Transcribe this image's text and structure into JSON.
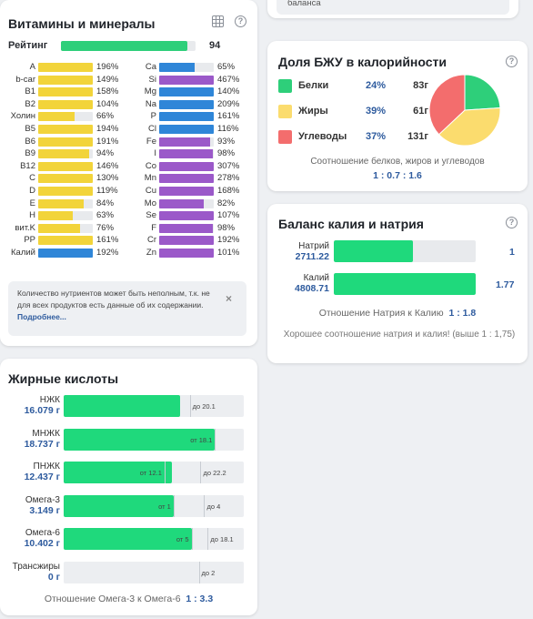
{
  "vitamins": {
    "title": "Витамины и минералы",
    "rating_label": "Рейтинг",
    "rating_value": "94",
    "rating_fraction": 0.94,
    "left": [
      {
        "name": "A",
        "value": "196%",
        "fill": 1.0,
        "color": "#f2d43a"
      },
      {
        "name": "b-car",
        "value": "149%",
        "fill": 1.0,
        "color": "#f2d43a"
      },
      {
        "name": "B1",
        "value": "158%",
        "fill": 1.0,
        "color": "#f2d43a"
      },
      {
        "name": "B2",
        "value": "104%",
        "fill": 1.0,
        "color": "#f2d43a"
      },
      {
        "name": "Холин",
        "value": "66%",
        "fill": 0.66,
        "color": "#f2d43a"
      },
      {
        "name": "B5",
        "value": "194%",
        "fill": 1.0,
        "color": "#f2d43a"
      },
      {
        "name": "B6",
        "value": "191%",
        "fill": 1.0,
        "color": "#f2d43a"
      },
      {
        "name": "B9",
        "value": "94%",
        "fill": 0.94,
        "color": "#f2d43a"
      },
      {
        "name": "B12",
        "value": "146%",
        "fill": 1.0,
        "color": "#f2d43a"
      },
      {
        "name": "C",
        "value": "130%",
        "fill": 1.0,
        "color": "#f2d43a"
      },
      {
        "name": "D",
        "value": "119%",
        "fill": 1.0,
        "color": "#f2d43a"
      },
      {
        "name": "E",
        "value": "84%",
        "fill": 0.84,
        "color": "#f2d43a"
      },
      {
        "name": "H",
        "value": "63%",
        "fill": 0.63,
        "color": "#f2d43a"
      },
      {
        "name": "вит.K",
        "value": "76%",
        "fill": 0.76,
        "color": "#f2d43a"
      },
      {
        "name": "PP",
        "value": "161%",
        "fill": 1.0,
        "color": "#f2d43a"
      },
      {
        "name": "Калий",
        "value": "192%",
        "fill": 1.0,
        "color": "#2f86d8"
      }
    ],
    "right": [
      {
        "name": "Ca",
        "value": "65%",
        "fill": 0.65,
        "color": "#2f86d8"
      },
      {
        "name": "Si",
        "value": "467%",
        "fill": 1.0,
        "color": "#9b59c9"
      },
      {
        "name": "Mg",
        "value": "140%",
        "fill": 1.0,
        "color": "#2f86d8"
      },
      {
        "name": "Na",
        "value": "209%",
        "fill": 1.0,
        "color": "#2f86d8"
      },
      {
        "name": "P",
        "value": "161%",
        "fill": 1.0,
        "color": "#2f86d8"
      },
      {
        "name": "Cl",
        "value": "116%",
        "fill": 1.0,
        "color": "#2f86d8"
      },
      {
        "name": "Fe",
        "value": "93%",
        "fill": 0.93,
        "color": "#9b59c9"
      },
      {
        "name": "I",
        "value": "98%",
        "fill": 0.98,
        "color": "#9b59c9"
      },
      {
        "name": "Co",
        "value": "307%",
        "fill": 1.0,
        "color": "#9b59c9"
      },
      {
        "name": "Mn",
        "value": "278%",
        "fill": 1.0,
        "color": "#9b59c9"
      },
      {
        "name": "Cu",
        "value": "168%",
        "fill": 1.0,
        "color": "#9b59c9"
      },
      {
        "name": "Mo",
        "value": "82%",
        "fill": 0.82,
        "color": "#9b59c9"
      },
      {
        "name": "Se",
        "value": "107%",
        "fill": 1.0,
        "color": "#9b59c9"
      },
      {
        "name": "F",
        "value": "98%",
        "fill": 0.98,
        "color": "#9b59c9"
      },
      {
        "name": "Cr",
        "value": "192%",
        "fill": 1.0,
        "color": "#9b59c9"
      },
      {
        "name": "Zn",
        "value": "101%",
        "fill": 1.0,
        "color": "#9b59c9"
      }
    ],
    "note_text": "Количество нутриентов может быть неполным, т.к. не для всех продуктов есть данные об их содержании.",
    "note_link": "Подробнее...",
    "close_glyph": "×",
    "help_glyph": "?"
  },
  "top_card": {
    "text": "баланса"
  },
  "bju": {
    "title": "Доля БЖУ в калорийности",
    "items": [
      {
        "name": "Белки",
        "pct": "24%",
        "grams": "83г",
        "color": "#2ecf7a",
        "share": 0.24
      },
      {
        "name": "Жиры",
        "pct": "39%",
        "grams": "61г",
        "color": "#fbdc6e",
        "share": 0.39
      },
      {
        "name": "Углеводы",
        "pct": "37%",
        "grams": "131г",
        "color": "#f36d6d",
        "share": 0.37
      }
    ],
    "subtitle": "Соотношение белков, жиров и углеводов",
    "ratio": "1 : 0.7 : 1.6"
  },
  "kna": {
    "title": "Баланс калия и натрия",
    "sodium_label": "Натрий",
    "sodium_value": "2711.22",
    "sodium_ratio": "1",
    "sodium_fill": 0.56,
    "potassium_label": "Калий",
    "potassium_value": "4808.71",
    "potassium_ratio": "1.77",
    "potassium_fill": 1.0,
    "ratio_label": "Отношение Натрия к Калию",
    "ratio_value": "1 : 1.8",
    "good_text": "Хорошее соотношение натрия и калия! (выше 1 : 1,75)"
  },
  "fat": {
    "title": "Жирные кислоты",
    "rows": [
      {
        "label": "НЖК",
        "value": "16.079 г",
        "fill": 0.645,
        "marks": [
          {
            "pos": 0.7,
            "text": "до 20.1",
            "side": "right"
          }
        ]
      },
      {
        "label": "МНЖК",
        "value": "18.737 г",
        "fill": 0.84,
        "marks": [
          {
            "pos": 0.84,
            "text": "от 18.1",
            "side": "left"
          }
        ]
      },
      {
        "label": "ПНЖК",
        "value": "12.437 г",
        "fill": 0.6,
        "marks": [
          {
            "pos": 0.56,
            "text": "от 12.1",
            "side": "left"
          },
          {
            "pos": 0.76,
            "text": "до 22.2",
            "side": "right"
          }
        ]
      },
      {
        "label": "Омега-3",
        "value": "3.149 г",
        "fill": 0.61,
        "marks": [
          {
            "pos": 0.61,
            "text": "от 1",
            "side": "left"
          },
          {
            "pos": 0.78,
            "text": "до 4",
            "side": "right"
          }
        ]
      },
      {
        "label": "Омега-6",
        "value": "10.402 г",
        "fill": 0.71,
        "marks": [
          {
            "pos": 0.71,
            "text": "от 5",
            "side": "left"
          },
          {
            "pos": 0.8,
            "text": "до 18.1",
            "side": "right"
          }
        ]
      },
      {
        "label": "Трансжиры",
        "value": "0 г",
        "fill": 0.0,
        "marks": [
          {
            "pos": 0.75,
            "text": "до 2",
            "side": "right"
          }
        ]
      }
    ],
    "ratio_label": "Отношение Омега-3 к Омега-6",
    "ratio_value": "1 : 3.3"
  }
}
